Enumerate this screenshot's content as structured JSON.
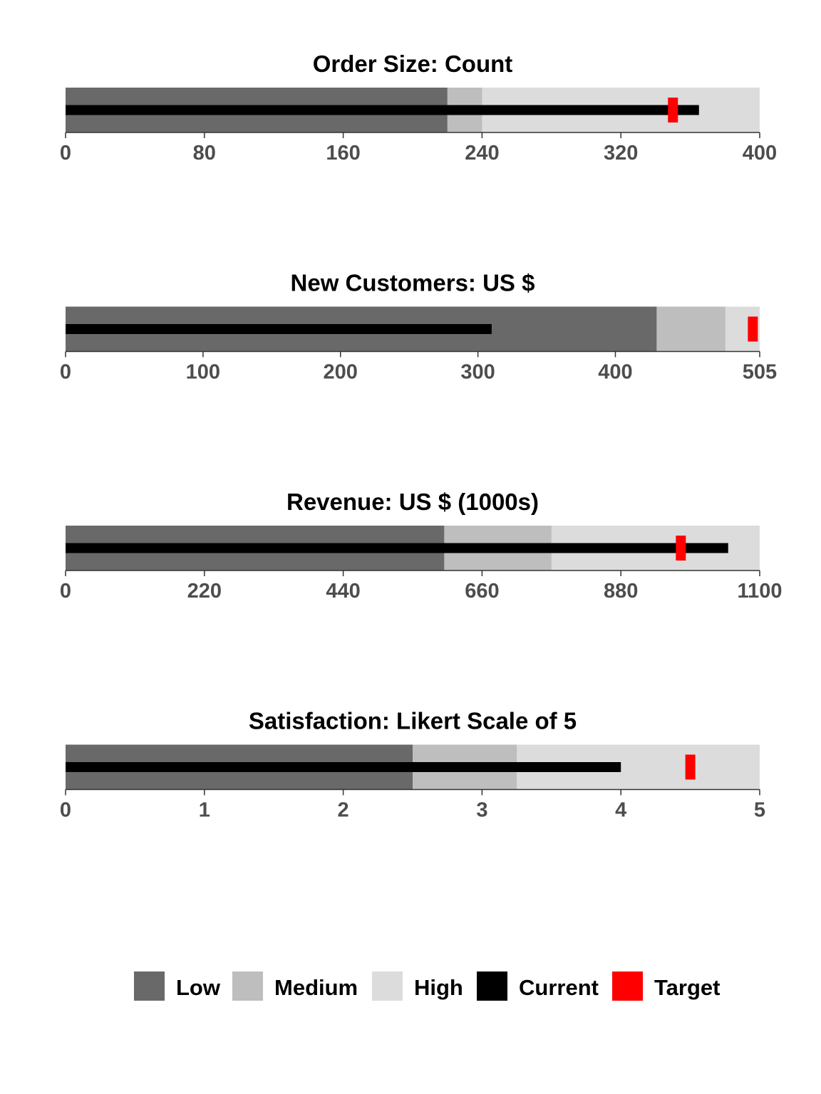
{
  "chart_data": {
    "type": "bullet",
    "colors": {
      "low": "#696969",
      "medium": "#bebebe",
      "high": "#dcdcdc",
      "current": "#000000",
      "target": "#ff0000"
    },
    "legend": {
      "position": "bottom",
      "items": [
        {
          "key": "low",
          "label": "Low"
        },
        {
          "key": "medium",
          "label": "Medium"
        },
        {
          "key": "high",
          "label": "High"
        },
        {
          "key": "current",
          "label": "Current"
        },
        {
          "key": "target",
          "label": "Target"
        }
      ]
    },
    "panels": [
      {
        "title": "Order Size: Count",
        "xlim": [
          0,
          400
        ],
        "ticks": [
          "0",
          "80",
          "160",
          "240",
          "320",
          "400"
        ],
        "tick_values": [
          0,
          80,
          160,
          240,
          320,
          400
        ],
        "ranges": {
          "low": 220,
          "medium": 240,
          "high": 400
        },
        "current": 365,
        "target": 350
      },
      {
        "title": "New Customers: US $",
        "xlim": [
          0,
          505
        ],
        "ticks": [
          "0",
          "100",
          "200",
          "300",
          "400",
          "505"
        ],
        "tick_values": [
          0,
          100,
          200,
          300,
          400,
          505
        ],
        "ranges": {
          "low": 430,
          "medium": 480,
          "high": 505
        },
        "current": 310,
        "target": 500
      },
      {
        "title": "Revenue: US $ (1000s)",
        "xlim": [
          0,
          1100
        ],
        "ticks": [
          "0",
          "220",
          "440",
          "660",
          "880",
          "1100"
        ],
        "tick_values": [
          0,
          220,
          440,
          660,
          880,
          1100
        ],
        "ranges": {
          "low": 600,
          "medium": 770,
          "high": 1100
        },
        "current": 1050,
        "target": 975
      },
      {
        "title": "Satisfaction: Likert Scale of 5",
        "xlim": [
          0,
          5
        ],
        "ticks": [
          "0",
          "1",
          "2",
          "3",
          "4",
          "5"
        ],
        "tick_values": [
          0,
          1,
          2,
          3,
          4,
          5
        ],
        "ranges": {
          "low": 2.5,
          "medium": 3.25,
          "high": 5
        },
        "current": 4,
        "target": 4.5
      }
    ]
  }
}
